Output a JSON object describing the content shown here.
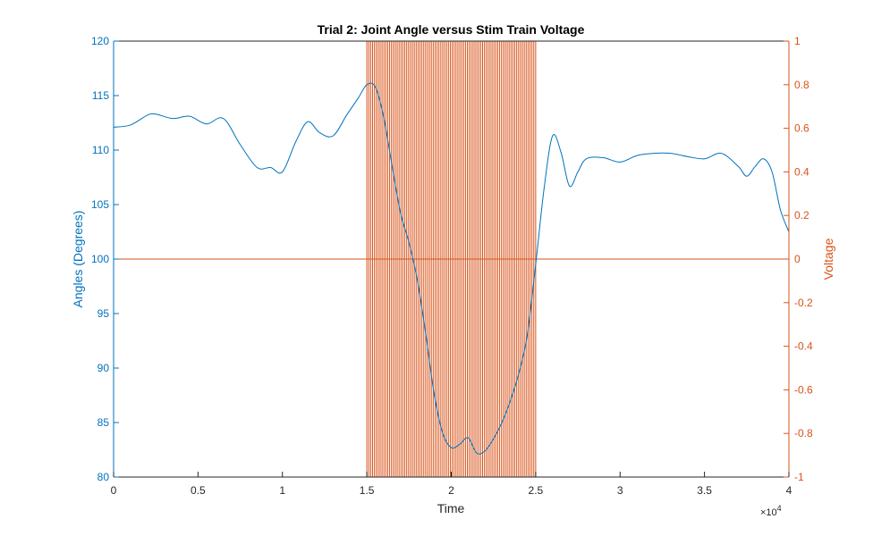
{
  "chart_data": {
    "type": "line",
    "title": "Trial 2: Joint Angle versus Stim Train Voltage",
    "xlabel": "Time",
    "x_exponent_base": "×10",
    "x_exponent_power": "4",
    "xlim": [
      0,
      40000
    ],
    "x_ticks": [
      0,
      5000,
      10000,
      15000,
      20000,
      25000,
      30000,
      35000,
      40000
    ],
    "x_tick_labels": [
      "0",
      "0.5",
      "1",
      "1.5",
      "2",
      "2.5",
      "3",
      "3.5",
      "4"
    ],
    "y_left": {
      "label": "Angles (Degrees)",
      "lim": [
        80,
        120
      ],
      "ticks": [
        80,
        85,
        90,
        95,
        100,
        105,
        110,
        115,
        120
      ],
      "tick_labels": [
        "80",
        "85",
        "90",
        "95",
        "100",
        "105",
        "110",
        "115",
        "120"
      ]
    },
    "y_right": {
      "label": "Voltage",
      "lim": [
        -1,
        1
      ],
      "ticks": [
        -1,
        -0.8,
        -0.6,
        -0.4,
        -0.2,
        0,
        0.2,
        0.4,
        0.6,
        0.8,
        1
      ],
      "tick_labels": [
        "-1",
        "-0.8",
        "-0.6",
        "-0.4",
        "-0.2",
        "0",
        "0.2",
        "0.4",
        "0.6",
        "0.8",
        "1"
      ]
    },
    "grid": false,
    "colors": {
      "angle": "#0072BD",
      "voltage": "#D95319",
      "axes": "#262626"
    },
    "series": [
      {
        "axis": "left",
        "color": "#0072BD",
        "x": [
          0,
          1000,
          2000,
          2500,
          3500,
          4500,
          5500,
          6500,
          7500,
          8500,
          9300,
          10000,
          10800,
          11500,
          12200,
          13000,
          13800,
          14500,
          15000,
          15500,
          16000,
          16500,
          17000,
          17500,
          18000,
          18500,
          19000,
          19500,
          20000,
          20500,
          21000,
          21500,
          22000,
          22500,
          23000,
          23500,
          24000,
          24500,
          25000,
          25500,
          26000,
          26500,
          27000,
          27500,
          28000,
          29000,
          30000,
          31000,
          32000,
          33000,
          34000,
          35000,
          36000,
          37000,
          37500,
          38000,
          38500,
          39000,
          39500,
          40000
        ],
        "y": [
          112.1,
          112.3,
          113.2,
          113.3,
          112.9,
          113.1,
          112.4,
          112.9,
          110.5,
          108.4,
          108.4,
          108.0,
          110.8,
          112.6,
          111.6,
          111.3,
          113.2,
          114.8,
          116.0,
          115.8,
          113.0,
          108.5,
          104.2,
          101.5,
          98.0,
          93.0,
          87.5,
          84.0,
          82.7,
          83.0,
          83.6,
          82.2,
          82.4,
          83.5,
          85.0,
          87.0,
          89.5,
          93.0,
          99.5,
          106.5,
          111.3,
          109.8,
          106.7,
          108.0,
          109.2,
          109.3,
          108.9,
          109.5,
          109.7,
          109.7,
          109.4,
          109.2,
          109.7,
          108.5,
          107.6,
          108.5,
          109.2,
          108.0,
          104.5,
          102.5
        ]
      },
      {
        "axis": "right",
        "color": "#D95319",
        "name": "",
        "baseline": 0,
        "pulse_train": {
          "start": 15000,
          "end": 25000,
          "pulse_count": 90,
          "amplitude": 1
        }
      }
    ]
  }
}
